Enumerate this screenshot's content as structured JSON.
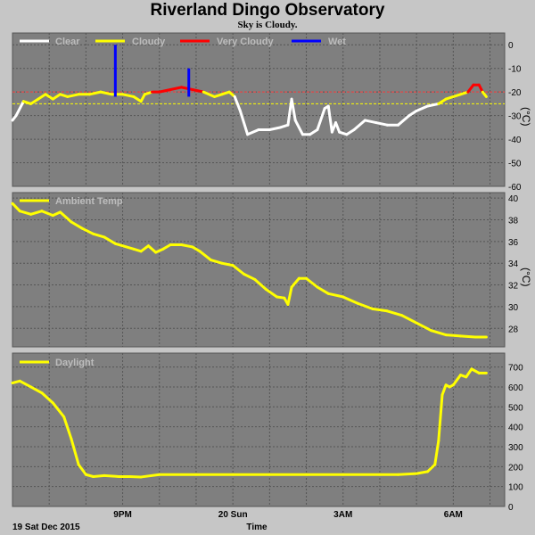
{
  "header": {
    "title": "Riverland Dingo Observatory",
    "subtitle": "Sky is Cloudy."
  },
  "footer": {
    "date_label": "19 Sat Dec 2015",
    "time_label": "Time"
  },
  "colors": {
    "plot_bg": "#7f7f7f",
    "page_bg": "#c6c6c6",
    "grid": "#555555",
    "clear": "#ffffff",
    "cloudy": "#ffff00",
    "very_cloudy": "#ff0000",
    "wet": "#0000ff",
    "threshold_red": "#ff4040",
    "threshold_yellow": "#ffff00"
  },
  "x_ticks": [
    {
      "label": "9PM",
      "t": 3
    },
    {
      "label": "20 Sun",
      "t": 6
    },
    {
      "label": "3AM",
      "t": 9
    },
    {
      "label": "6AM",
      "t": 12
    }
  ],
  "chart_data": [
    {
      "type": "line",
      "name": "sky",
      "legend": [
        "Clear",
        "Cloudy",
        "Very Cloudy",
        "Wet"
      ],
      "ylabel": "(°C)",
      "ylim": [
        -60,
        5
      ],
      "yticks": [
        0,
        -10,
        -20,
        -30,
        -40,
        -50,
        -60
      ],
      "thresholds": [
        -20,
        -25
      ],
      "x": [
        0,
        0.1,
        0.3,
        0.5,
        0.7,
        0.9,
        1.1,
        1.3,
        1.5,
        1.8,
        2.1,
        2.4,
        2.7,
        3,
        3.3,
        3.5,
        3.6,
        3.8,
        4,
        4.3,
        4.6,
        4.9,
        5.2,
        5.5,
        5.7,
        5.9,
        6.05,
        6.2,
        6.4,
        6.7,
        7,
        7.3,
        7.5,
        7.6,
        7.7,
        7.9,
        8.1,
        8.3,
        8.5,
        8.6,
        8.7,
        8.8,
        8.9,
        9.1,
        9.3,
        9.6,
        9.9,
        10.2,
        10.5,
        10.8,
        11,
        11.3,
        11.6,
        11.8,
        12,
        12.2,
        12.4,
        12.55,
        12.7,
        12.8,
        12.9
      ],
      "y": [
        -32,
        -30,
        -24,
        -25,
        -23,
        -21,
        -23,
        -21,
        -22,
        -21,
        -21,
        -20,
        -21,
        -21,
        -22,
        -24,
        -21,
        -20,
        -20,
        -19,
        -18,
        -19,
        -20,
        -22,
        -21,
        -20,
        -22,
        -28,
        -38,
        -36,
        -36,
        -35,
        -34,
        -23,
        -32,
        -38,
        -38,
        -36,
        -27,
        -26,
        -37,
        -33,
        -37,
        -38,
        -36,
        -32,
        -33,
        -34,
        -34,
        -30,
        -28,
        -26,
        -25,
        -23,
        -22,
        -21,
        -20,
        -17,
        -17,
        -20,
        -22
      ],
      "wet_spikes": [
        {
          "x": 2.8,
          "y": 0
        },
        {
          "x": 4.8,
          "y": -10
        }
      ]
    },
    {
      "type": "line",
      "name": "ambient",
      "legend": [
        "Ambient Temp"
      ],
      "ylim": [
        26.3,
        40.5
      ],
      "yticks": [
        40,
        38,
        36,
        34,
        32,
        30,
        28
      ],
      "x": [
        0,
        0.2,
        0.5,
        0.8,
        1.1,
        1.3,
        1.6,
        1.9,
        2.2,
        2.5,
        2.8,
        3,
        3.3,
        3.5,
        3.7,
        3.9,
        4.1,
        4.3,
        4.6,
        4.9,
        5.1,
        5.4,
        5.7,
        6,
        6.3,
        6.6,
        6.9,
        7.2,
        7.4,
        7.5,
        7.6,
        7.8,
        8,
        8.3,
        8.6,
        9,
        9.4,
        9.8,
        10.2,
        10.6,
        11,
        11.4,
        11.8,
        12.2,
        12.6,
        12.9
      ],
      "y": [
        39.5,
        38.8,
        38.5,
        38.8,
        38.4,
        38.7,
        37.8,
        37.2,
        36.7,
        36.4,
        35.8,
        35.6,
        35.3,
        35.1,
        35.6,
        35.0,
        35.3,
        35.7,
        35.7,
        35.5,
        35.1,
        34.3,
        34.0,
        33.8,
        33.0,
        32.5,
        31.6,
        30.9,
        30.8,
        30.2,
        31.8,
        32.6,
        32.6,
        31.8,
        31.2,
        30.9,
        30.3,
        29.8,
        29.6,
        29.2,
        28.5,
        27.8,
        27.4,
        27.3,
        27.2,
        27.2
      ]
    },
    {
      "type": "line",
      "name": "daylight",
      "legend": [
        "Daylight"
      ],
      "ylim": [
        0,
        770
      ],
      "yticks": [
        700,
        600,
        500,
        400,
        300,
        200,
        100,
        0
      ],
      "x": [
        0,
        0.2,
        0.5,
        0.8,
        1.1,
        1.4,
        1.6,
        1.8,
        2.0,
        2.2,
        2.5,
        2.9,
        3.2,
        3.5,
        4,
        5,
        6,
        7,
        8,
        9,
        10,
        10.5,
        11,
        11.3,
        11.5,
        11.6,
        11.7,
        11.8,
        11.9,
        12,
        12.2,
        12.35,
        12.5,
        12.7,
        12.9
      ],
      "y": [
        620,
        630,
        600,
        570,
        520,
        450,
        340,
        210,
        160,
        150,
        155,
        150,
        150,
        148,
        160,
        160,
        160,
        160,
        160,
        160,
        160,
        160,
        165,
        175,
        210,
        330,
        560,
        610,
        600,
        610,
        660,
        650,
        690,
        670,
        670
      ]
    }
  ]
}
